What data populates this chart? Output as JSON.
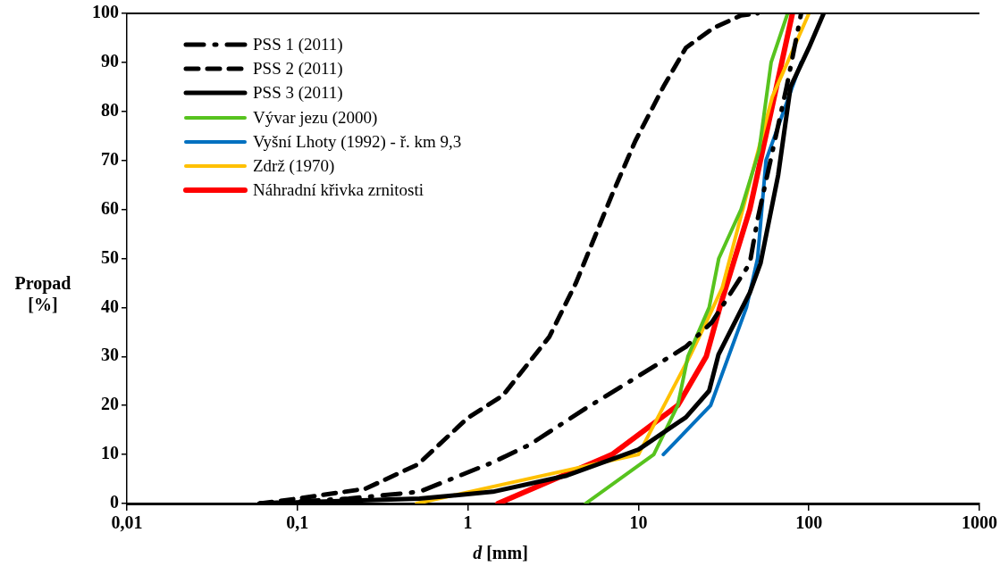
{
  "chart_data": {
    "type": "line",
    "xlabel": "d [mm]",
    "ylabel": "Propad [%]",
    "log": "x",
    "legend": "top left",
    "grid": false,
    "marker": "none",
    "xlim": [
      0.01,
      1000
    ],
    "xticks": [
      {
        "value": 0.01,
        "label": "0,01"
      },
      {
        "value": 0.1,
        "label": "0,1"
      },
      1,
      10,
      100,
      1000
    ],
    "ylim": [
      0,
      100
    ],
    "yticks": [
      0,
      10,
      20,
      30,
      40,
      50,
      60,
      70,
      80,
      90,
      100
    ],
    "series": [
      {
        "name": "PSS 1 (2011)",
        "color": "#000000",
        "line_style": "dashdot",
        "x": [
          0.06,
          0.2,
          0.52,
          1.4,
          2.3,
          4.9,
          10,
          19,
          27,
          45,
          50,
          74,
          78,
          90
        ],
        "values": [
          0,
          1,
          2.4,
          8.4,
          12,
          19.4,
          26,
          32,
          37,
          49,
          58,
          85,
          89,
          100
        ]
      },
      {
        "name": "PSS 2 (2011)",
        "color": "#000000",
        "line_style": "dashed",
        "x": [
          0.06,
          0.1,
          0.25,
          0.51,
          1,
          1.6,
          3,
          4.3,
          7,
          9.6,
          14,
          19,
          27.5,
          40,
          50
        ],
        "values": [
          0,
          1,
          3,
          8,
          17.5,
          22,
          34,
          45,
          63,
          74,
          85,
          93,
          97,
          99.6,
          100
        ]
      },
      {
        "name": "PSS 3 (2011)",
        "color": "#000000",
        "line_style": "solid",
        "x": [
          0.06,
          0.52,
          1.4,
          3.8,
          10,
          19,
          26,
          29.5,
          45,
          52,
          66,
          78,
          100,
          122
        ],
        "values": [
          0,
          1,
          2.4,
          5.7,
          11,
          17.6,
          23,
          30.4,
          43,
          49,
          67,
          85,
          93,
          100
        ]
      },
      {
        "name": "Vývar jezu (2000)",
        "color": "#57c31e",
        "line_style": "solid",
        "x": [
          4.9,
          12.3,
          17,
          19.5,
          26,
          29.6,
          40,
          51,
          60,
          75
        ],
        "values": [
          0,
          10,
          20,
          30,
          40,
          50,
          60,
          72,
          90,
          100
        ]
      },
      {
        "name": "Vyšní Lhoty (1992) - ř. km 9,3",
        "color": "#0070c0",
        "line_style": "solid",
        "x": [
          14,
          26.5,
          43,
          50,
          56,
          90
        ],
        "values": [
          10,
          20,
          40,
          50,
          70,
          90
        ]
      },
      {
        "name": "Zdrž (1970)",
        "color": "#ffc000",
        "line_style": "solid",
        "x": [
          0.5,
          10,
          20,
          25,
          31,
          61,
          100
        ],
        "values": [
          0,
          10,
          30,
          37,
          44,
          83,
          100
        ]
      },
      {
        "name": "Náhradní křivka zrnitosti",
        "color": "#ff0000",
        "line_style": "solid",
        "x": [
          1.5,
          7,
          17,
          25,
          30,
          45,
          60,
          80
        ],
        "values": [
          0,
          10,
          20,
          30,
          40,
          60,
          80,
          100
        ]
      }
    ]
  }
}
